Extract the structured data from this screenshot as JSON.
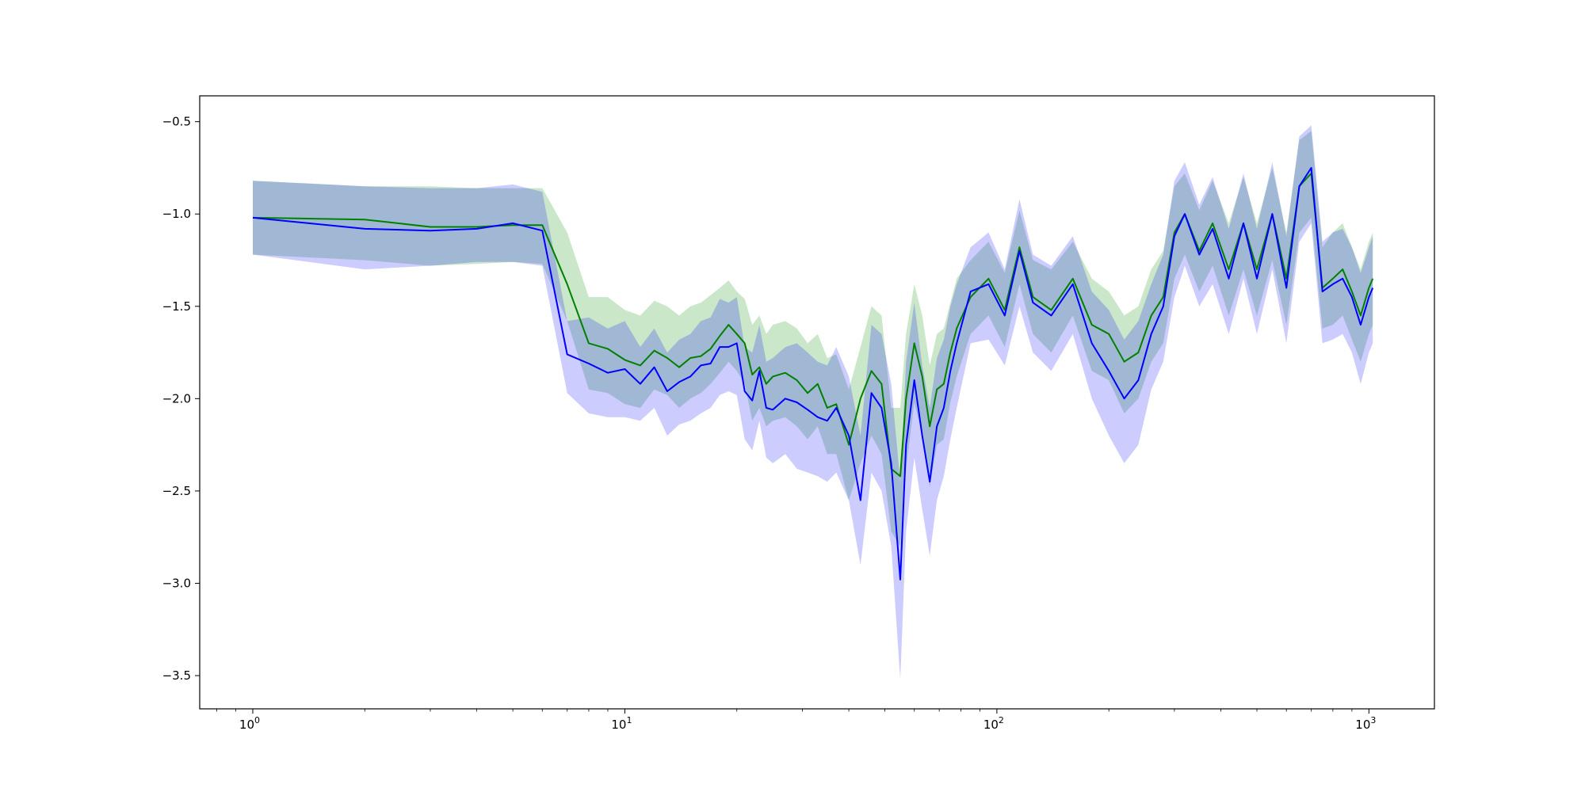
{
  "chart_data": {
    "type": "line",
    "title": "",
    "xlabel": "",
    "ylabel": "",
    "xscale": "log",
    "xlim": [
      0.72,
      1500
    ],
    "ylim": [
      -3.68,
      -0.36
    ],
    "grid": false,
    "legend": "none",
    "x_ticks": [
      {
        "base": "10",
        "exp": "0",
        "value": 1
      },
      {
        "base": "10",
        "exp": "1",
        "value": 10
      },
      {
        "base": "10",
        "exp": "2",
        "value": 100
      },
      {
        "base": "10",
        "exp": "3",
        "value": 1000
      }
    ],
    "y_ticks": [
      {
        "label": "−0.5",
        "value": -0.5
      },
      {
        "label": "−1.0",
        "value": -1.0
      },
      {
        "label": "−1.5",
        "value": -1.5
      },
      {
        "label": "−2.0",
        "value": -2.0
      },
      {
        "label": "−2.5",
        "value": -2.5
      },
      {
        "label": "−3.0",
        "value": -3.0
      },
      {
        "label": "−3.5",
        "value": -3.5
      }
    ],
    "series": [
      {
        "color": "#008000",
        "band_color": "#2ca02c",
        "band_opacity": 0.25,
        "x": [
          1,
          2,
          3,
          4,
          5,
          6,
          7,
          8,
          9,
          10,
          11,
          12,
          13,
          14,
          15,
          16,
          17,
          18,
          19,
          20,
          21,
          22,
          23,
          24,
          25,
          27,
          29,
          31,
          33,
          35,
          37,
          40,
          43,
          46,
          49,
          52,
          55,
          57,
          60,
          63,
          66,
          69,
          72,
          75,
          78,
          85,
          95,
          105,
          115,
          125,
          140,
          160,
          180,
          200,
          220,
          240,
          260,
          280,
          300,
          320,
          350,
          380,
          420,
          460,
          500,
          550,
          600,
          650,
          700,
          750,
          800,
          850,
          900,
          950,
          1000,
          1024
        ],
        "y": [
          -1.02,
          -1.03,
          -1.07,
          -1.07,
          -1.06,
          -1.06,
          -1.38,
          -1.7,
          -1.73,
          -1.79,
          -1.82,
          -1.74,
          -1.78,
          -1.83,
          -1.78,
          -1.77,
          -1.73,
          -1.66,
          -1.6,
          -1.65,
          -1.7,
          -1.87,
          -1.83,
          -1.92,
          -1.88,
          -1.86,
          -1.9,
          -1.97,
          -1.92,
          -2.05,
          -2.03,
          -2.25,
          -2.0,
          -1.85,
          -1.92,
          -2.38,
          -2.42,
          -2.0,
          -1.7,
          -1.88,
          -2.15,
          -1.95,
          -1.92,
          -1.75,
          -1.62,
          -1.45,
          -1.35,
          -1.52,
          -1.18,
          -1.45,
          -1.52,
          -1.35,
          -1.6,
          -1.65,
          -1.8,
          -1.75,
          -1.55,
          -1.45,
          -1.1,
          -1.0,
          -1.2,
          -1.05,
          -1.3,
          -1.05,
          -1.3,
          -1.0,
          -1.35,
          -0.85,
          -0.78,
          -1.4,
          -1.35,
          -1.3,
          -1.42,
          -1.55,
          -1.4,
          -1.35
        ],
        "lower": [
          -1.22,
          -1.25,
          -1.28,
          -1.27,
          -1.26,
          -1.27,
          -1.58,
          -1.95,
          -1.97,
          -2.03,
          -2.05,
          -1.95,
          -1.98,
          -2.05,
          -2.0,
          -1.97,
          -1.92,
          -1.86,
          -1.8,
          -1.85,
          -1.92,
          -2.12,
          -2.05,
          -2.15,
          -2.12,
          -2.1,
          -2.15,
          -2.22,
          -2.15,
          -2.3,
          -2.3,
          -2.55,
          -2.35,
          -2.2,
          -2.3,
          -2.72,
          -2.8,
          -2.38,
          -2.02,
          -2.2,
          -2.48,
          -2.25,
          -2.22,
          -2.02,
          -1.88,
          -1.65,
          -1.55,
          -1.72,
          -1.38,
          -1.65,
          -1.75,
          -1.55,
          -1.85,
          -1.9,
          -2.08,
          -2.0,
          -1.8,
          -1.7,
          -1.35,
          -1.22,
          -1.42,
          -1.28,
          -1.55,
          -1.3,
          -1.55,
          -1.25,
          -1.6,
          -1.1,
          -1.02,
          -1.62,
          -1.6,
          -1.55,
          -1.68,
          -1.8,
          -1.65,
          -1.6
        ],
        "upper": [
          -0.82,
          -0.85,
          -0.85,
          -0.86,
          -0.86,
          -0.86,
          -1.1,
          -1.45,
          -1.45,
          -1.52,
          -1.55,
          -1.47,
          -1.5,
          -1.55,
          -1.5,
          -1.48,
          -1.44,
          -1.4,
          -1.36,
          -1.42,
          -1.46,
          -1.6,
          -1.55,
          -1.65,
          -1.6,
          -1.58,
          -1.62,
          -1.7,
          -1.65,
          -1.78,
          -1.76,
          -1.95,
          -1.72,
          -1.5,
          -1.55,
          -2.05,
          -2.05,
          -1.65,
          -1.38,
          -1.55,
          -1.82,
          -1.65,
          -1.62,
          -1.48,
          -1.35,
          -1.25,
          -1.15,
          -1.32,
          -0.98,
          -1.25,
          -1.3,
          -1.15,
          -1.35,
          -1.42,
          -1.55,
          -1.5,
          -1.3,
          -1.2,
          -0.85,
          -0.78,
          -0.98,
          -0.82,
          -1.05,
          -0.8,
          -1.05,
          -0.75,
          -1.1,
          -0.6,
          -0.55,
          -1.18,
          -1.1,
          -1.05,
          -1.18,
          -1.3,
          -1.15,
          -1.1
        ]
      },
      {
        "color": "#0000ff",
        "band_color": "#0000ff",
        "band_opacity": 0.2,
        "x": [
          1,
          2,
          3,
          4,
          5,
          6,
          7,
          8,
          9,
          10,
          11,
          12,
          13,
          14,
          15,
          16,
          17,
          18,
          19,
          20,
          21,
          22,
          23,
          24,
          25,
          27,
          29,
          31,
          33,
          35,
          37,
          40,
          43,
          46,
          49,
          52,
          55,
          57,
          60,
          63,
          66,
          69,
          72,
          75,
          78,
          85,
          95,
          105,
          115,
          125,
          140,
          160,
          180,
          200,
          220,
          240,
          260,
          280,
          300,
          320,
          350,
          380,
          420,
          460,
          500,
          550,
          600,
          650,
          700,
          750,
          800,
          850,
          900,
          950,
          1000,
          1024
        ],
        "y": [
          -1.02,
          -1.08,
          -1.09,
          -1.08,
          -1.05,
          -1.09,
          -1.76,
          -1.81,
          -1.86,
          -1.84,
          -1.92,
          -1.83,
          -1.96,
          -1.91,
          -1.88,
          -1.82,
          -1.81,
          -1.72,
          -1.72,
          -1.7,
          -1.96,
          -2.01,
          -1.85,
          -2.05,
          -2.06,
          -2.0,
          -2.02,
          -2.06,
          -2.1,
          -2.12,
          -2.05,
          -2.2,
          -2.55,
          -1.97,
          -2.05,
          -2.35,
          -2.98,
          -2.25,
          -1.9,
          -2.2,
          -2.45,
          -2.15,
          -2.05,
          -1.85,
          -1.7,
          -1.42,
          -1.38,
          -1.55,
          -1.2,
          -1.48,
          -1.55,
          -1.38,
          -1.7,
          -1.85,
          -2.0,
          -1.9,
          -1.65,
          -1.5,
          -1.12,
          -1.0,
          -1.22,
          -1.08,
          -1.35,
          -1.05,
          -1.35,
          -1.0,
          -1.4,
          -0.85,
          -0.75,
          -1.42,
          -1.38,
          -1.35,
          -1.45,
          -1.6,
          -1.45,
          -1.4
        ],
        "lower": [
          -1.22,
          -1.3,
          -1.28,
          -1.26,
          -1.26,
          -1.28,
          -1.97,
          -2.08,
          -2.1,
          -2.1,
          -2.12,
          -2.05,
          -2.2,
          -2.14,
          -2.12,
          -2.08,
          -2.05,
          -1.98,
          -1.96,
          -1.98,
          -2.22,
          -2.28,
          -2.12,
          -2.32,
          -2.35,
          -2.3,
          -2.38,
          -2.4,
          -2.42,
          -2.45,
          -2.4,
          -2.55,
          -2.9,
          -2.4,
          -2.5,
          -2.8,
          -3.52,
          -2.72,
          -2.32,
          -2.6,
          -2.85,
          -2.55,
          -2.42,
          -2.22,
          -2.05,
          -1.7,
          -1.68,
          -1.82,
          -1.5,
          -1.75,
          -1.85,
          -1.65,
          -2.0,
          -2.2,
          -2.35,
          -2.25,
          -1.95,
          -1.8,
          -1.45,
          -1.28,
          -1.5,
          -1.38,
          -1.65,
          -1.35,
          -1.65,
          -1.3,
          -1.7,
          -1.15,
          -1.05,
          -1.7,
          -1.68,
          -1.65,
          -1.75,
          -1.92,
          -1.75,
          -1.7
        ],
        "upper": [
          -0.82,
          -0.85,
          -0.86,
          -0.86,
          -0.84,
          -0.88,
          -1.58,
          -1.56,
          -1.62,
          -1.58,
          -1.72,
          -1.62,
          -1.75,
          -1.68,
          -1.65,
          -1.58,
          -1.56,
          -1.46,
          -1.48,
          -1.45,
          -1.72,
          -1.75,
          -1.6,
          -1.8,
          -1.78,
          -1.72,
          -1.7,
          -1.75,
          -1.8,
          -1.82,
          -1.72,
          -1.88,
          -2.2,
          -1.6,
          -1.65,
          -1.92,
          -2.45,
          -1.8,
          -1.48,
          -1.82,
          -2.05,
          -1.78,
          -1.68,
          -1.5,
          -1.38,
          -1.18,
          -1.1,
          -1.3,
          -0.92,
          -1.22,
          -1.28,
          -1.12,
          -1.42,
          -1.52,
          -1.68,
          -1.58,
          -1.38,
          -1.22,
          -0.82,
          -0.72,
          -0.95,
          -0.8,
          -1.08,
          -0.78,
          -1.08,
          -0.72,
          -1.12,
          -0.58,
          -0.52,
          -1.15,
          -1.1,
          -1.08,
          -1.18,
          -1.32,
          -1.18,
          -1.12
        ]
      }
    ]
  }
}
